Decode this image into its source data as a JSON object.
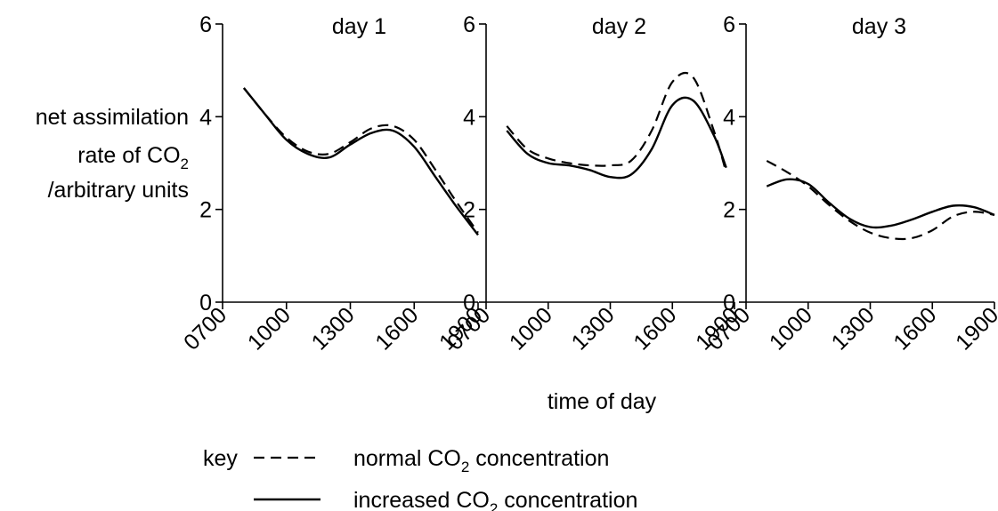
{
  "ylabel": {
    "line1": "net assimilation",
    "line2_prefix": "rate of CO",
    "line2_sub": "2",
    "line3": "/arbitrary units"
  },
  "xlabel": "time of day",
  "key": {
    "label": "key",
    "normal": {
      "prefix": "normal CO",
      "sub": "2",
      "suffix": " concentration"
    },
    "increased": {
      "prefix": "increased CO",
      "sub": "2",
      "suffix": " concentration"
    }
  },
  "chart_data": [
    {
      "type": "line",
      "title": "day 1",
      "xlim": [
        7,
        19
      ],
      "ylim": [
        0,
        6
      ],
      "yticks": [
        0,
        2,
        4,
        6
      ],
      "xticks": [
        7,
        10,
        13,
        16,
        19
      ],
      "xtick_labels": [
        "0700",
        "1000",
        "1300",
        "1600",
        "1900"
      ],
      "series": [
        {
          "key": "normal",
          "style": "dashed",
          "x": [
            8.0,
            9.0,
            10.0,
            11.0,
            12.0,
            13.0,
            14.0,
            15.0,
            16.0,
            17.0,
            18.0,
            19.0
          ],
          "y": [
            4.62,
            4.05,
            3.55,
            3.25,
            3.2,
            3.45,
            3.75,
            3.8,
            3.5,
            2.85,
            2.15,
            1.5
          ]
        },
        {
          "key": "increased",
          "style": "solid",
          "x": [
            8.0,
            9.0,
            10.0,
            11.0,
            12.0,
            13.0,
            14.0,
            15.0,
            16.0,
            17.0,
            18.0,
            19.0
          ],
          "y": [
            4.62,
            4.05,
            3.5,
            3.2,
            3.12,
            3.4,
            3.65,
            3.7,
            3.35,
            2.7,
            2.05,
            1.45
          ]
        }
      ]
    },
    {
      "type": "line",
      "title": "day 2",
      "xlim": [
        7,
        19
      ],
      "ylim": [
        0,
        6
      ],
      "yticks": [
        0,
        2,
        4,
        6
      ],
      "xticks": [
        7,
        10,
        13,
        16,
        19
      ],
      "xtick_labels": [
        "0700",
        "1000",
        "1300",
        "1600",
        "1900"
      ],
      "series": [
        {
          "key": "normal",
          "style": "dashed",
          "x": [
            8.0,
            9.0,
            10.0,
            11.0,
            12.0,
            13.0,
            14.0,
            15.0,
            16.0,
            17.0,
            18.0,
            18.6
          ],
          "y": [
            3.8,
            3.3,
            3.1,
            3.0,
            2.95,
            2.95,
            3.05,
            3.7,
            4.75,
            4.85,
            3.7,
            2.8
          ]
        },
        {
          "key": "increased",
          "style": "solid",
          "x": [
            8.0,
            9.0,
            10.0,
            11.0,
            12.0,
            13.0,
            14.0,
            15.0,
            16.0,
            17.0,
            18.0,
            18.6
          ],
          "y": [
            3.7,
            3.2,
            3.0,
            2.95,
            2.85,
            2.7,
            2.75,
            3.3,
            4.25,
            4.35,
            3.6,
            2.9
          ]
        }
      ]
    },
    {
      "type": "line",
      "title": "day 3",
      "xlim": [
        7,
        19
      ],
      "ylim": [
        0,
        6
      ],
      "yticks": [
        0,
        2,
        4,
        6
      ],
      "xticks": [
        7,
        10,
        13,
        16,
        19
      ],
      "xtick_labels": [
        "0700",
        "1000",
        "1300",
        "1600",
        "1900"
      ],
      "series": [
        {
          "key": "normal",
          "style": "dashed",
          "x": [
            8.0,
            9.0,
            10.0,
            11.0,
            12.0,
            13.0,
            14.0,
            15.0,
            16.0,
            17.0,
            18.0,
            19.0
          ],
          "y": [
            3.05,
            2.8,
            2.5,
            2.1,
            1.75,
            1.5,
            1.38,
            1.38,
            1.55,
            1.85,
            1.95,
            1.88
          ]
        },
        {
          "key": "increased",
          "style": "solid",
          "x": [
            8.0,
            9.0,
            10.0,
            11.0,
            12.0,
            13.0,
            14.0,
            15.0,
            16.0,
            17.0,
            18.0,
            19.0
          ],
          "y": [
            2.5,
            2.65,
            2.55,
            2.15,
            1.8,
            1.62,
            1.65,
            1.78,
            1.95,
            2.08,
            2.05,
            1.88
          ]
        }
      ]
    }
  ]
}
